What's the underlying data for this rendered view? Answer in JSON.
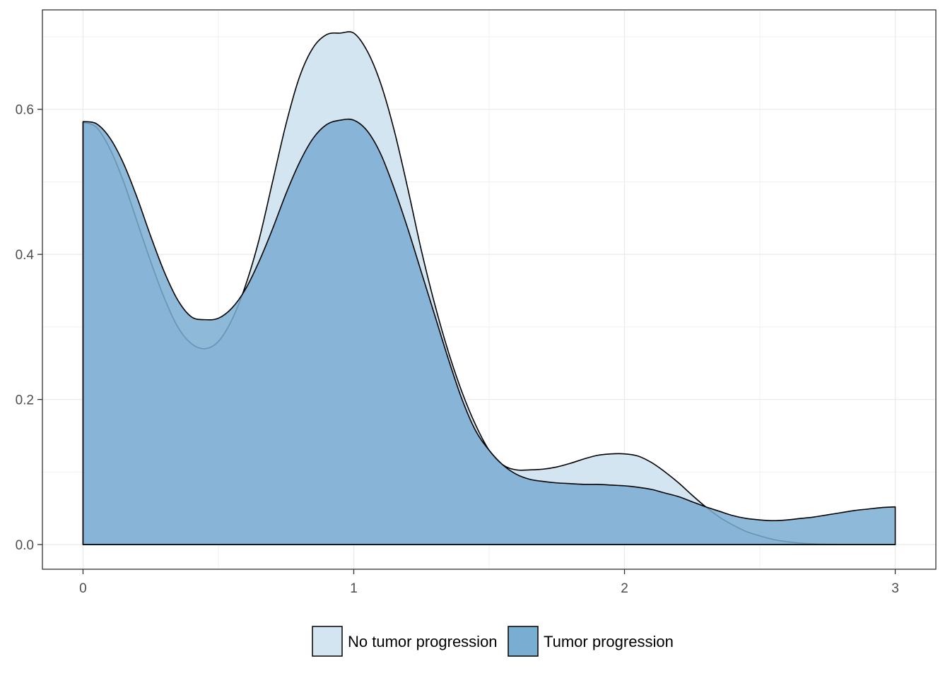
{
  "chart_data": {
    "type": "area",
    "title": "",
    "xlabel": "",
    "ylabel": "",
    "xlim": [
      -0.15,
      3.15
    ],
    "ylim": [
      -0.034,
      0.737
    ],
    "x_ticks": [
      0,
      1,
      2,
      3
    ],
    "x_tick_labels": [
      "0",
      "1",
      "2",
      "3"
    ],
    "y_ticks": [
      0.0,
      0.2,
      0.4,
      0.6
    ],
    "y_tick_labels": [
      "0.0",
      "0.2",
      "0.4",
      "0.6"
    ],
    "grid": true,
    "legend_position": "bottom",
    "series": [
      {
        "name": "No tumor progression",
        "color": "#d3e5f1",
        "x": [
          0,
          0.05,
          0.1,
          0.15,
          0.2,
          0.25,
          0.3,
          0.35,
          0.4,
          0.45,
          0.5,
          0.55,
          0.6,
          0.65,
          0.7,
          0.75,
          0.8,
          0.85,
          0.9,
          0.95,
          1.0,
          1.05,
          1.1,
          1.15,
          1.2,
          1.25,
          1.3,
          1.35,
          1.4,
          1.45,
          1.5,
          1.55,
          1.6,
          1.65,
          1.7,
          1.75,
          1.8,
          1.85,
          1.9,
          1.95,
          2.0,
          2.05,
          2.1,
          2.15,
          2.2,
          2.25,
          2.3,
          2.35,
          2.4,
          2.45,
          2.5,
          2.55,
          2.6,
          2.65,
          2.7,
          2.75,
          2.8,
          2.85,
          2.9,
          2.95,
          3.0
        ],
        "values": [
          0.582,
          0.575,
          0.545,
          0.5,
          0.445,
          0.39,
          0.34,
          0.3,
          0.277,
          0.27,
          0.28,
          0.31,
          0.357,
          0.42,
          0.5,
          0.58,
          0.645,
          0.685,
          0.703,
          0.705,
          0.705,
          0.68,
          0.635,
          0.57,
          0.49,
          0.405,
          0.33,
          0.265,
          0.21,
          0.165,
          0.13,
          0.11,
          0.103,
          0.103,
          0.104,
          0.107,
          0.112,
          0.118,
          0.123,
          0.125,
          0.125,
          0.122,
          0.113,
          0.1,
          0.085,
          0.068,
          0.052,
          0.038,
          0.027,
          0.018,
          0.012,
          0.007,
          0.004,
          0.002,
          0.001,
          0.0005,
          0.0002,
          0.0001,
          0.0,
          0.0,
          0.0
        ]
      },
      {
        "name": "Tumor progression",
        "color": "#7aadd2",
        "x": [
          0,
          0.05,
          0.1,
          0.15,
          0.2,
          0.25,
          0.3,
          0.35,
          0.4,
          0.45,
          0.5,
          0.55,
          0.6,
          0.65,
          0.7,
          0.75,
          0.8,
          0.85,
          0.9,
          0.95,
          1.0,
          1.05,
          1.1,
          1.15,
          1.2,
          1.25,
          1.3,
          1.35,
          1.4,
          1.45,
          1.5,
          1.55,
          1.6,
          1.65,
          1.7,
          1.75,
          1.8,
          1.85,
          1.9,
          1.95,
          2.0,
          2.05,
          2.1,
          2.15,
          2.2,
          2.25,
          2.3,
          2.35,
          2.4,
          2.45,
          2.5,
          2.55,
          2.6,
          2.65,
          2.7,
          2.75,
          2.8,
          2.85,
          2.9,
          2.95,
          3.0
        ],
        "values": [
          0.583,
          0.58,
          0.56,
          0.525,
          0.478,
          0.425,
          0.376,
          0.337,
          0.314,
          0.31,
          0.312,
          0.326,
          0.352,
          0.39,
          0.435,
          0.484,
          0.527,
          0.56,
          0.579,
          0.585,
          0.585,
          0.57,
          0.538,
          0.49,
          0.435,
          0.375,
          0.315,
          0.255,
          0.2,
          0.157,
          0.13,
          0.11,
          0.097,
          0.09,
          0.087,
          0.085,
          0.084,
          0.083,
          0.083,
          0.082,
          0.081,
          0.079,
          0.076,
          0.071,
          0.066,
          0.059,
          0.052,
          0.046,
          0.04,
          0.036,
          0.034,
          0.033,
          0.034,
          0.036,
          0.038,
          0.041,
          0.044,
          0.047,
          0.049,
          0.051,
          0.052
        ]
      }
    ]
  },
  "legend": {
    "items": [
      {
        "label": "No tumor progression",
        "color": "#d3e5f1"
      },
      {
        "label": "Tumor progression",
        "color": "#7aadd2"
      }
    ]
  }
}
